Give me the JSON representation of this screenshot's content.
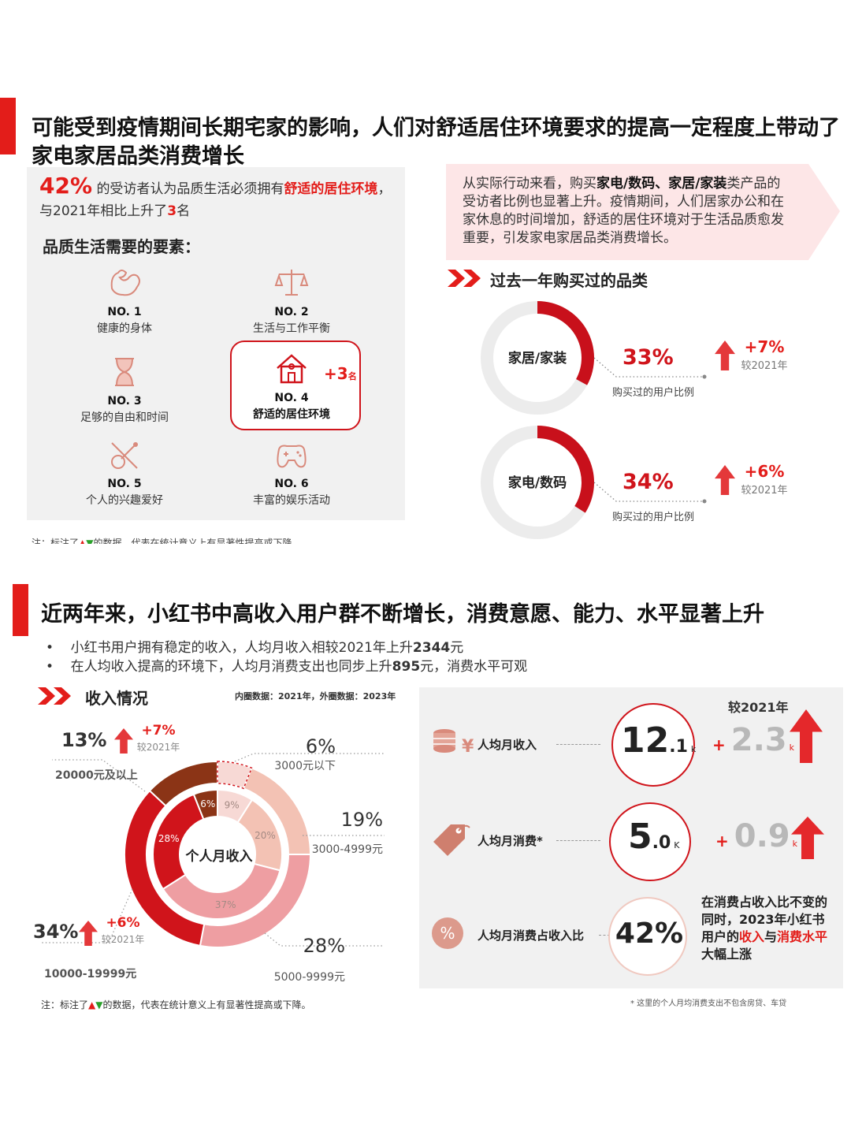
{
  "section1": {
    "title": "可能受到疫情期间长期宅家的影响，人们对舒适居住环境要求的提高一定程度上带动了家电家居品类消费增长",
    "stat_pct": "42%",
    "stat_text_a": "的受访者认为品质生活必须拥有",
    "stat_highlight": "舒适的居住环境",
    "stat_text_b": "，与2021年相比上升了",
    "stat_rank_up": "3",
    "stat_text_c": "名",
    "factors_title": "品质生活需要的要素：",
    "factors": [
      {
        "no": "NO. 1",
        "label": "健康的身体",
        "icon": "muscle-icon"
      },
      {
        "no": "NO. 2",
        "label": "生活与工作平衡",
        "icon": "scale-icon"
      },
      {
        "no": "NO. 3",
        "label": "足够的自由和时间",
        "icon": "hourglass-icon"
      },
      {
        "no": "NO. 4",
        "label": "舒适的居住环境",
        "icon": "house-icon"
      },
      {
        "no": "NO. 5",
        "label": "个人的兴趣爱好",
        "icon": "guitar-icon"
      },
      {
        "no": "NO. 6",
        "label": "丰富的娱乐活动",
        "icon": "gamepad-icon"
      }
    ],
    "highlight_badge": "+3",
    "highlight_badge_unit": "名",
    "note_cut": "注：标注了",
    "note_cut_b": "的数据，代表在统计意义上有显著性提高或下降",
    "callout_a": "从实际行动来看，购买",
    "callout_bold": "家电/数码、家居/家装",
    "callout_b": "类产品的受访者比例也显著上升。疫情期间，人们居家办公和在家休息的时间增加，舒适的居住环境对于生活品质愈发重要，引发家电家居品类消费增长。",
    "purchase_title": "过去一年购买过的品类",
    "purchases": [
      {
        "name": "家居/家装",
        "pct": "33%",
        "value": 33,
        "caption": "购买过的用户比例",
        "change": "+7%",
        "compare": "较2021年"
      },
      {
        "name": "家电/数码",
        "pct": "34%",
        "value": 34,
        "caption": "购买过的用户比例",
        "change": "+6%",
        "compare": "较2021年"
      }
    ]
  },
  "section2": {
    "title": "近两年来，小红书中高收入用户群不断增长，消费意愿、能力、水平显著上升",
    "bullets": [
      {
        "a": "小红书用户拥有稳定的收入，人均月收入相较2021年上升",
        "b": "2344",
        "c": "元"
      },
      {
        "a": "在人均收入提高的环境下，人均月消费支出也同步上升",
        "b": "895",
        "c": "元，消费水平可观"
      }
    ],
    "income_title": "收入情况",
    "income_legend": "内圈数据：2021年，外圈数据：2023年",
    "donut_center": "个人月收入",
    "compare_label": "较2021年",
    "note": "注：标注了",
    "note_b": "的数据，代表在统计意义上有显著性提高或下降。",
    "stats_compare_title": "较2021年",
    "stats": [
      {
        "label": "人均月收入",
        "big": "12",
        "dec": ".1",
        "unit": "k",
        "delta_sign": "+",
        "delta_big": "2.3",
        "delta_unit": "k",
        "icon": "coins-yen-icon"
      },
      {
        "label": "人均月消费*",
        "big": "5",
        "dec": ".0",
        "unit": "K",
        "delta_sign": "+",
        "delta_big": "0.9",
        "delta_unit": "k",
        "icon": "price-tag-icon"
      },
      {
        "label": "人均月消费占收入比",
        "big": "42%",
        "icon": "percent-icon"
      }
    ],
    "ratio_text_a": "在消费占收入比不变的同时，",
    "ratio_text_b": "2023年小红书用户的",
    "ratio_hl1": "收入",
    "ratio_mid": "与",
    "ratio_hl2": "消费水平",
    "ratio_end": "大幅上涨",
    "footnote": "* 这里的个人月均消费支出不包含房贷、车贷"
  },
  "chart_data": [
    {
      "type": "pie",
      "title": "过去一年购买过的品类",
      "categories": [
        "家居/家装",
        "家电/数码"
      ],
      "values": [
        33,
        34
      ],
      "change_vs_2021": [
        "+7%",
        "+6%"
      ]
    },
    {
      "type": "pie",
      "title": "收入情况",
      "subtitle": "内圈数据：2021年，外圈数据：2023年",
      "categories": [
        "3000元以下",
        "3000-4999元",
        "5000-9999元",
        "10000-19999元",
        "20000元及以上"
      ],
      "series": [
        {
          "name": "2021年",
          "values": [
            9,
            20,
            37,
            28,
            6
          ]
        },
        {
          "name": "2023年",
          "values": [
            6,
            19,
            28,
            34,
            13
          ]
        }
      ],
      "colors": [
        "#f7d9d5",
        "#f3c2b4",
        "#ee9ea2",
        "#d0141b",
        "#8b3416"
      ],
      "change_vs_2021": {
        "10000-19999元": "+6%",
        "20000元及以上": "+7%"
      }
    }
  ]
}
